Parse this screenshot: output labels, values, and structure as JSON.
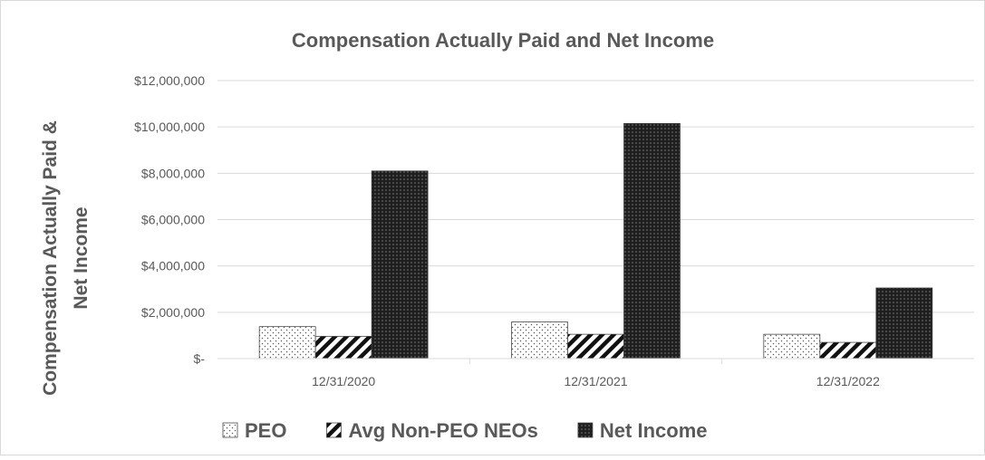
{
  "chart_data": {
    "type": "bar",
    "title": "Compensation Actually Paid and Net Income",
    "xlabel": "",
    "ylabel_lines": [
      "Compensation Actually Paid &",
      "Net Income"
    ],
    "categories": [
      "12/31/2020",
      "12/31/2021",
      "12/31/2022"
    ],
    "series": [
      {
        "name": "PEO",
        "values": [
          1380000,
          1580000,
          1050000
        ],
        "pattern": "dots"
      },
      {
        "name": "Avg Non-PEO NEOs",
        "values": [
          960000,
          1050000,
          700000
        ],
        "pattern": "diagonal-stripes"
      },
      {
        "name": "Net Income",
        "values": [
          8100000,
          10150000,
          3050000
        ],
        "pattern": "dark-dots"
      }
    ],
    "ylim": [
      0,
      12000000
    ],
    "yticks": [
      0,
      2000000,
      4000000,
      6000000,
      8000000,
      10000000,
      12000000
    ],
    "ytick_labels": [
      "$-",
      "$2,000,000",
      "$4,000,000",
      "$6,000,000",
      "$8,000,000",
      "$10,000,000",
      "$12,000,000"
    ],
    "grid": true,
    "legend_position": "bottom",
    "colors": {
      "axis": "#d9d9d9",
      "text": "#595959",
      "bar_dark": "#262626",
      "bar_edge": "#404040"
    }
  }
}
